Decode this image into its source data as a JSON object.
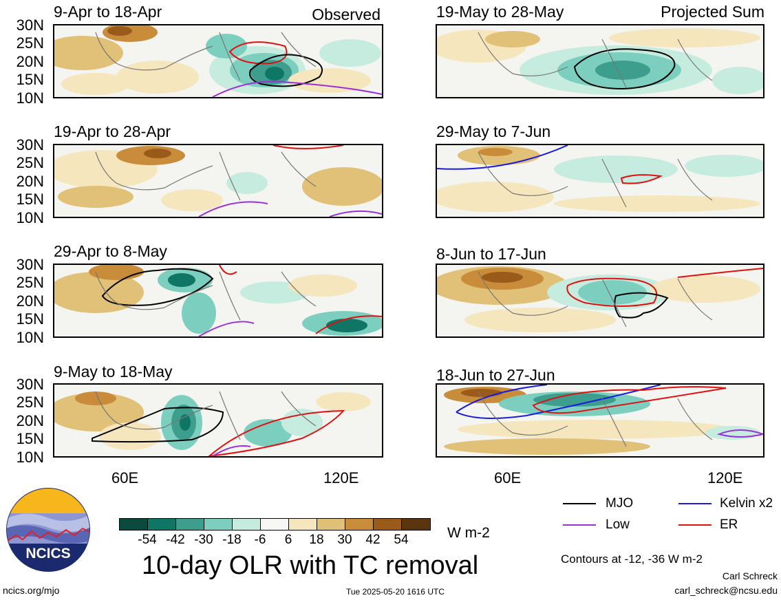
{
  "panels": [
    {
      "title": "9-Apr to 18-Apr",
      "corner": "Observed"
    },
    {
      "title": "19-May to 28-May",
      "corner": "Projected Sum"
    },
    {
      "title": "19-Apr to 28-Apr",
      "corner": ""
    },
    {
      "title": "29-May to 7-Jun",
      "corner": ""
    },
    {
      "title": "29-Apr to 8-May",
      "corner": ""
    },
    {
      "title": "8-Jun to 17-Jun",
      "corner": ""
    },
    {
      "title": "9-May to 18-May",
      "corner": ""
    },
    {
      "title": "18-Jun to 27-Jun",
      "corner": ""
    }
  ],
  "lat_labels": [
    "30N",
    "25N",
    "20N",
    "15N",
    "10N"
  ],
  "lon_labels": [
    "60E",
    "120E"
  ],
  "colorbar": {
    "colors": [
      "#0b4a3d",
      "#0f7565",
      "#3d9e8e",
      "#7ccfbf",
      "#c6ebdf",
      "#f6f6f4",
      "#f6e6bd",
      "#e1c077",
      "#c98c3a",
      "#9a5b1a",
      "#5b3510"
    ],
    "ticks": [
      "-54",
      "-42",
      "-30",
      "-18",
      "-6",
      "6",
      "18",
      "30",
      "42",
      "54"
    ],
    "unit": "W m-2"
  },
  "title": "10-day OLR with TC removal",
  "legend": [
    {
      "label": "MJO",
      "color": "#000000"
    },
    {
      "label": "Kelvin x2",
      "color": "#1a1adc"
    },
    {
      "label": "Low",
      "color": "#9b30d8"
    },
    {
      "label": "ER",
      "color": "#e01010"
    }
  ],
  "contours_note": "Contours at -12, -36 W m-2",
  "author": "Carl Schreck",
  "email": "carl_schreck@ncsu.edu",
  "site": "ncics.org/mjo",
  "timestamp": "Tue 2025-05-20 1616 UTC",
  "logo_text": "NCICS"
}
